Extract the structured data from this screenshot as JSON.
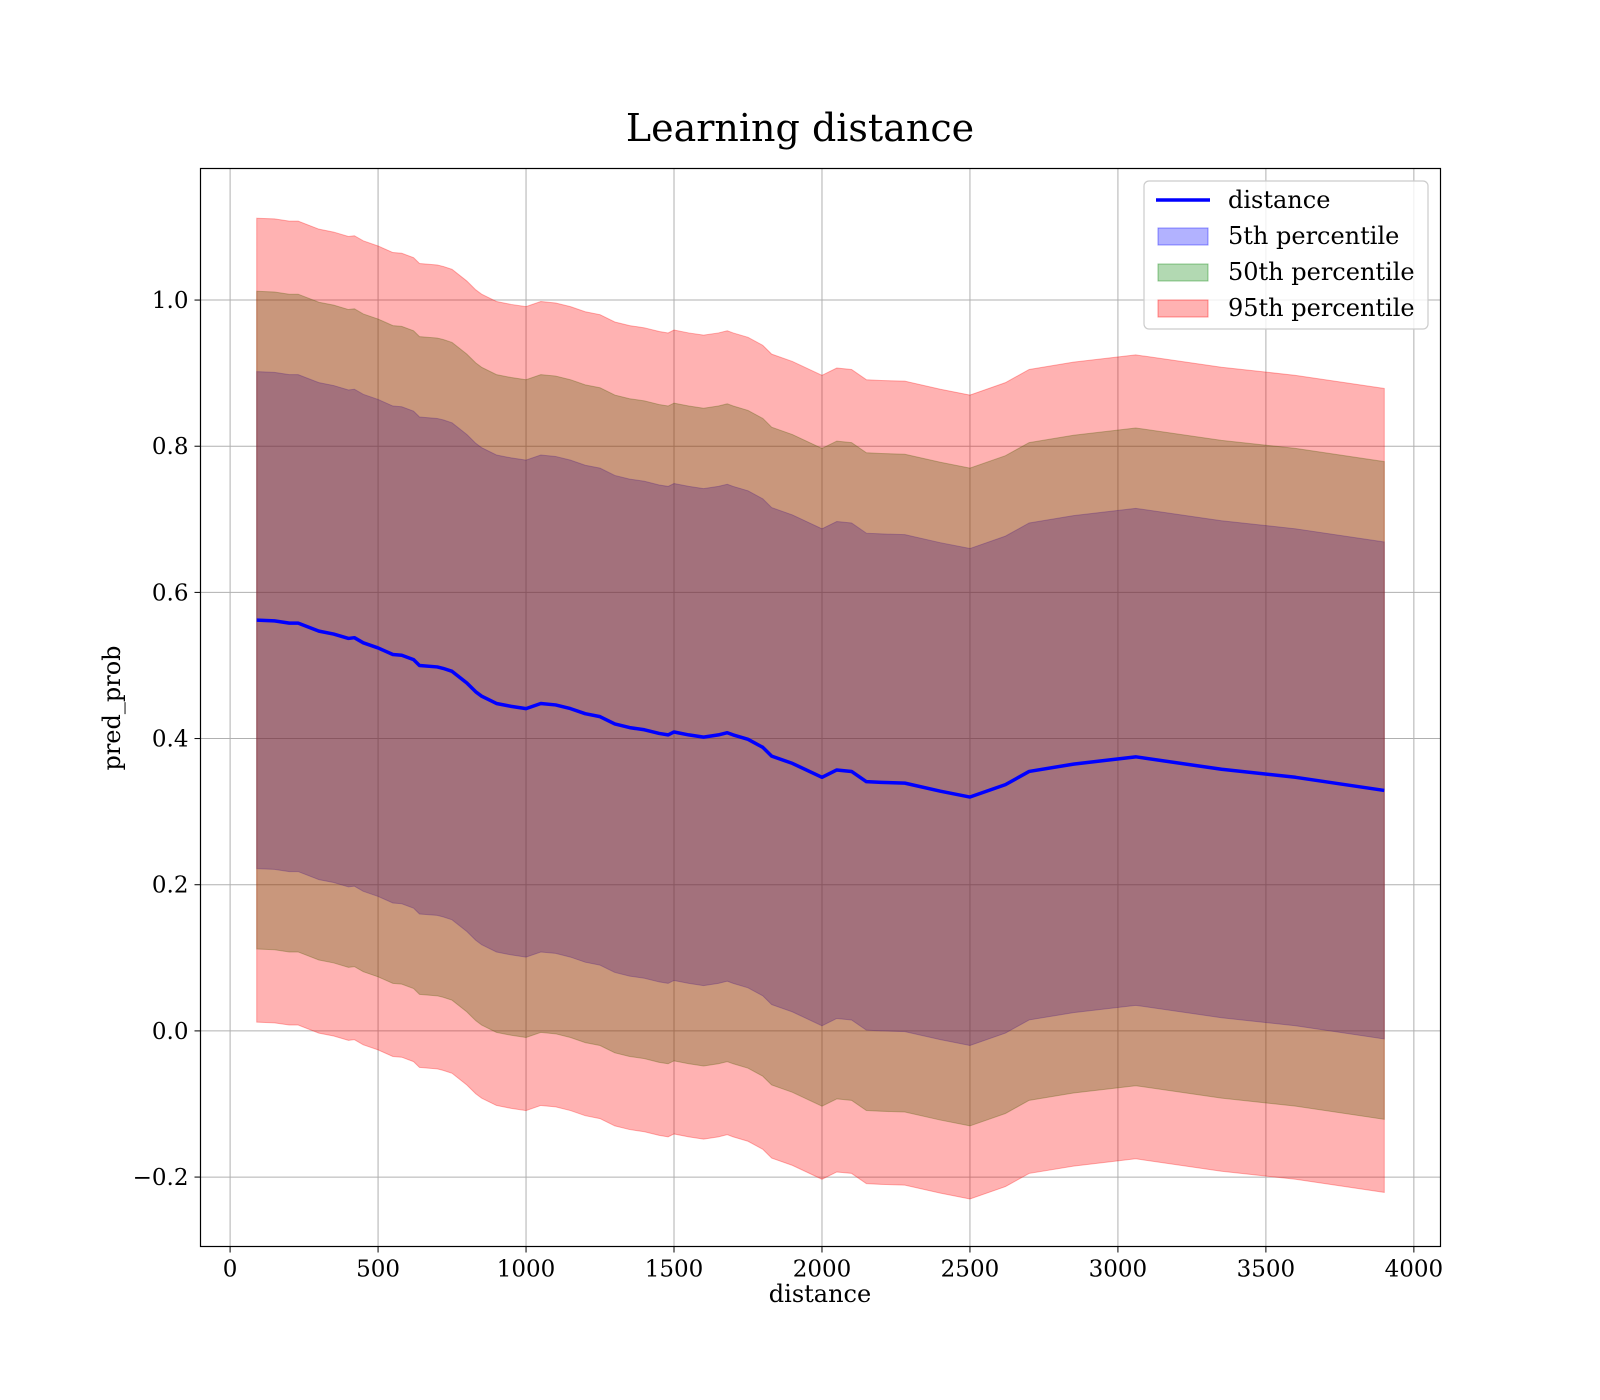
{
  "chart_data": {
    "type": "line",
    "title": "Learning distance",
    "xlabel": "distance",
    "ylabel": "pred_prob",
    "xlim": [
      -100,
      4090
    ],
    "ylim": [
      -0.295,
      1.18
    ],
    "xticks": [
      0,
      500,
      1000,
      1500,
      2000,
      2500,
      3000,
      3500,
      4000
    ],
    "xtick_labels": [
      "0",
      "500",
      "1000",
      "1500",
      "2000",
      "2500",
      "3000",
      "3500",
      "4000"
    ],
    "yticks": [
      -0.2,
      0.0,
      0.2,
      0.4,
      0.6,
      0.8,
      1.0
    ],
    "ytick_labels": [
      "−0.2",
      "0.0",
      "0.2",
      "0.4",
      "0.6",
      "0.8",
      "1.0"
    ],
    "grid": true,
    "legend_position": "top-right",
    "x": [
      90,
      150,
      200,
      230,
      300,
      350,
      400,
      420,
      450,
      500,
      550,
      580,
      620,
      640,
      700,
      720,
      750,
      800,
      830,
      850,
      900,
      950,
      1000,
      1050,
      1100,
      1150,
      1200,
      1250,
      1300,
      1350,
      1400,
      1450,
      1480,
      1500,
      1550,
      1600,
      1650,
      1680,
      1700,
      1750,
      1800,
      1830,
      1900,
      2000,
      2050,
      2100,
      2150,
      2200,
      2280,
      2400,
      2500,
      2620,
      2700,
      2850,
      3060,
      3350,
      3600,
      3900
    ],
    "series": [
      {
        "name": "distance",
        "type": "line",
        "color": "#0000ff",
        "values": [
          0.562,
          0.561,
          0.558,
          0.558,
          0.547,
          0.543,
          0.537,
          0.538,
          0.531,
          0.524,
          0.515,
          0.514,
          0.508,
          0.5,
          0.498,
          0.496,
          0.492,
          0.476,
          0.464,
          0.458,
          0.448,
          0.444,
          0.441,
          0.448,
          0.446,
          0.441,
          0.434,
          0.43,
          0.42,
          0.415,
          0.412,
          0.407,
          0.405,
          0.409,
          0.405,
          0.402,
          0.405,
          0.408,
          0.405,
          0.399,
          0.388,
          0.376,
          0.366,
          0.347,
          0.357,
          0.355,
          0.341,
          0.34,
          0.339,
          0.328,
          0.32,
          0.337,
          0.355,
          0.365,
          0.375,
          0.358,
          0.347,
          0.329
        ]
      },
      {
        "name": "5th percentile",
        "type": "band",
        "color": "#0000ff",
        "opacity": 0.3,
        "upper_offset": 0.34,
        "lower_offset": 0.34
      },
      {
        "name": "50th percentile",
        "type": "band",
        "color": "#008000",
        "opacity": 0.3,
        "upper_offset": 0.45,
        "lower_offset": 0.45
      },
      {
        "name": "95th percentile",
        "type": "band",
        "color": "#ff0000",
        "opacity": 0.3,
        "upper_offset": 0.55,
        "lower_offset": 0.55
      }
    ]
  }
}
